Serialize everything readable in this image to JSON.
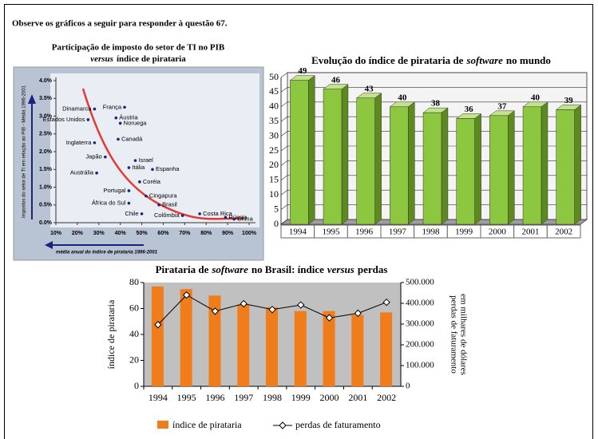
{
  "header": "Observe os gráficos a seguir para responder à questão 67.",
  "chart_data": [
    {
      "type": "scatter",
      "title": "Participação de imposto do setor de TI no PIB",
      "subtitle": [
        "versus",
        "índice de pirataria"
      ],
      "x_label": "média anual do índice de pirataria 1996-2001",
      "y_label": "Impostos do setor de TI em relação ao PIB - Média 1996-2001",
      "xlim": [
        10,
        100
      ],
      "ylim": [
        0,
        4
      ],
      "xticks": [
        {
          "value": 10,
          "label": "10%"
        },
        {
          "value": 20,
          "label": "20%"
        },
        {
          "value": 30,
          "label": "30%"
        },
        {
          "value": 40,
          "label": "40%"
        },
        {
          "value": 50,
          "label": "50%"
        },
        {
          "value": 60,
          "label": "60%"
        },
        {
          "value": 70,
          "label": "70%"
        },
        {
          "value": 80,
          "label": "80%"
        },
        {
          "value": 90,
          "label": "90%"
        },
        {
          "value": 100,
          "label": "100%"
        }
      ],
      "yticks": [
        {
          "value": 0,
          "label": "0.0%"
        },
        {
          "value": 0.5,
          "label": "0.5%"
        },
        {
          "value": 1,
          "label": "1.0%"
        },
        {
          "value": 1.5,
          "label": "1.5%"
        },
        {
          "value": 2,
          "label": "2.0%"
        },
        {
          "value": 2.5,
          "label": "2.5%"
        },
        {
          "value": 3,
          "label": "3.0%"
        },
        {
          "value": 3.5,
          "label": "3.5%"
        },
        {
          "value": 4,
          "label": "4.0%"
        }
      ],
      "color": "#1a237e",
      "trend_color": "#e53935",
      "points": [
        {
          "label": "Dinamarca",
          "x": 28,
          "y": 3.2
        },
        {
          "label": "França",
          "x": 42,
          "y": 3.25
        },
        {
          "label": "Estados Unidos",
          "x": 25,
          "y": 2.9
        },
        {
          "label": "Áustria",
          "x": 38,
          "y": 2.95
        },
        {
          "label": "Noruega",
          "x": 40,
          "y": 2.8
        },
        {
          "label": "Inglaterra",
          "x": 28,
          "y": 2.25
        },
        {
          "label": "Canadá",
          "x": 39,
          "y": 2.35
        },
        {
          "label": "Japão",
          "x": 33,
          "y": 1.85
        },
        {
          "label": "Israel",
          "x": 47,
          "y": 1.75
        },
        {
          "label": "Itália",
          "x": 44,
          "y": 1.55
        },
        {
          "label": "Espanha",
          "x": 55,
          "y": 1.5
        },
        {
          "label": "Austrália",
          "x": 29,
          "y": 1.4
        },
        {
          "label": "Coréia",
          "x": 49,
          "y": 1.15
        },
        {
          "label": "Portugal",
          "x": 44,
          "y": 0.9
        },
        {
          "label": "Cingapura",
          "x": 52,
          "y": 0.75
        },
        {
          "label": "África do Sul",
          "x": 44,
          "y": 0.55
        },
        {
          "label": "Brasil",
          "x": 58,
          "y": 0.5
        },
        {
          "label": "Chile",
          "x": 50,
          "y": 0.25
        },
        {
          "label": "Colômbia",
          "x": 69,
          "y": 0.2
        },
        {
          "label": "Costa Rica",
          "x": 77,
          "y": 0.25
        },
        {
          "label": "Rússia",
          "x": 89,
          "y": 0.15
        },
        {
          "label": "China",
          "x": 93,
          "y": 0.1
        }
      ]
    },
    {
      "type": "bar3d",
      "title": [
        "Evolução do índice de pirataria de",
        "software",
        "no mundo"
      ],
      "categories": [
        "1994",
        "1995",
        "1996",
        "1997",
        "1998",
        "1999",
        "2000",
        "2001",
        "2002"
      ],
      "values": [
        49,
        46,
        43,
        40,
        38,
        36,
        37,
        40,
        39
      ],
      "color": "#8dc63f",
      "ylim": [
        0,
        50
      ],
      "yticks": [
        0,
        5,
        10,
        15,
        20,
        25,
        30,
        35,
        40,
        45,
        50
      ],
      "grid": true
    },
    {
      "type": "bar-line",
      "title": [
        "Pirataria de",
        "software",
        "no Brasil: índice",
        "versus",
        "perdas"
      ],
      "y_label": "índice de pirataria",
      "y2_label": [
        "perdas de faturamento",
        "em milhares de dólares"
      ],
      "categories": [
        "1994",
        "1995",
        "1996",
        "1997",
        "1998",
        "1999",
        "2000",
        "2001",
        "2002"
      ],
      "ylim": [
        0,
        80
      ],
      "yticks": [
        0,
        20,
        40,
        60,
        80
      ],
      "y2lim": [
        0,
        500000
      ],
      "y2ticks": [
        0,
        {
          "value": 100000,
          "label": "100.000"
        },
        {
          "value": 200000,
          "label": "200.000"
        },
        {
          "value": 300000,
          "label": "300.000"
        },
        {
          "value": 400000,
          "label": "400.000"
        },
        {
          "value": 500000,
          "label": "500.000"
        }
      ],
      "series": [
        {
          "name": "índice de pirataria",
          "color": "#f07c1a",
          "values": [
            77,
            75,
            70,
            63,
            61,
            58,
            58,
            55,
            57
          ]
        },
        {
          "name": "perdas de faturamento",
          "color": "#000000",
          "axis": "y2",
          "values": [
            297000,
            440000,
            362000,
            398000,
            370000,
            392000,
            330000,
            352000,
            405000
          ]
        }
      ]
    }
  ]
}
